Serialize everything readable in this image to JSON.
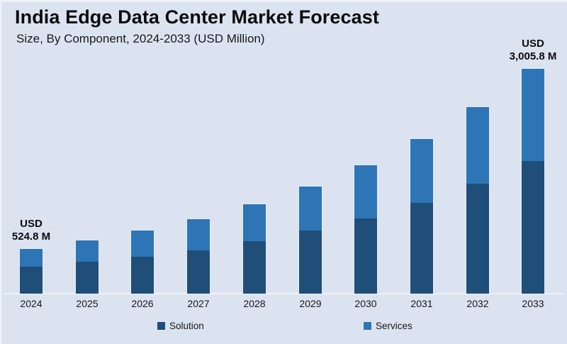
{
  "page": {
    "background": "#dce3f0",
    "title": "India Edge Data Center Market Forecast",
    "subtitle": "Size, By Component, 2024-2033 (USD Million)"
  },
  "chart_data": {
    "type": "bar",
    "stacked": true,
    "title": "India Edge Data Center Market Forecast",
    "subtitle": "Size, By Component, 2024-2033 (USD Million)",
    "xlabel": "",
    "ylabel": "USD Million",
    "grid": false,
    "legend_position": "bottom",
    "baseline_color": "#eef2f9",
    "categories": [
      "2024",
      "2025",
      "2026",
      "2027",
      "2028",
      "2029",
      "2030",
      "2031",
      "2032",
      "2033"
    ],
    "series": [
      {
        "name": "Solution",
        "color": "#1f4e79",
        "values": [
          316.5,
          382.3,
          454.0,
          546.5,
          670.3,
          816.6,
          984.6,
          1197.4,
          1461.1,
          1773.4
        ]
      },
      {
        "name": "Services",
        "color": "#2e75b6",
        "values": [
          208.3,
          254.8,
          319.5,
          392.5,
          469.7,
          567.4,
          695.6,
          842.4,
          1015.3,
          1232.4
        ]
      }
    ],
    "totals": [
      524.8,
      637.1,
      773.5,
      939.0,
      1140.0,
      1384.0,
      1680.2,
      2039.8,
      2476.4,
      3005.8
    ],
    "ylim": [
      0,
      3200
    ],
    "annotations": [
      {
        "category": "2024",
        "lines": [
          "USD",
          "524.8 M"
        ]
      },
      {
        "category": "2033",
        "lines": [
          "USD",
          "3,005.8 M"
        ]
      }
    ]
  }
}
